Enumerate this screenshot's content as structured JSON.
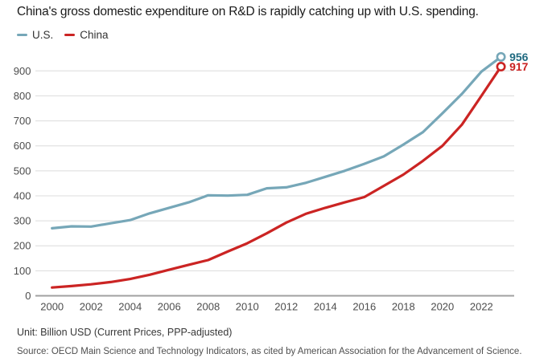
{
  "title": "China's gross domestic expenditure on R&D is rapidly catching up with U.S. spending.",
  "legend": [
    {
      "label": "U.S.",
      "color": "#76a7b8"
    },
    {
      "label": "China",
      "color": "#cb2423"
    }
  ],
  "footer": {
    "unit": "Unit: Billion USD (Current Prices, PPP-adjusted)",
    "source": "Source: OECD Main Science and Technology Indicators, as cited by American Association for the Advancement of Science."
  },
  "chart_data": {
    "type": "line",
    "title": "China's gross domestic expenditure on R&D is rapidly catching up with U.S. spending.",
    "x": [
      2000,
      2001,
      2002,
      2003,
      2004,
      2005,
      2006,
      2007,
      2008,
      2009,
      2010,
      2011,
      2012,
      2013,
      2014,
      2015,
      2016,
      2017,
      2018,
      2019,
      2020,
      2021,
      2022,
      2023
    ],
    "series": [
      {
        "name": "U.S.",
        "color": "#76a7b8",
        "label_color": "#1f6a80",
        "values": [
          270,
          278,
          277,
          290,
          303,
          330,
          352,
          374,
          402,
          401,
          404,
          430,
          434,
          452,
          476,
          500,
          528,
          558,
          605,
          655,
          730,
          808,
          897,
          956
        ],
        "end_label": "956"
      },
      {
        "name": "China",
        "color": "#cb2423",
        "label_color": "#c92121",
        "values": [
          33,
          39,
          46,
          55,
          67,
          84,
          104,
          124,
          143,
          177,
          210,
          250,
          293,
          328,
          352,
          374,
          395,
          440,
          485,
          540,
          600,
          685,
          800,
          917
        ],
        "end_label": "917"
      }
    ],
    "xticks": [
      2000,
      2002,
      2004,
      2006,
      2008,
      2010,
      2012,
      2014,
      2016,
      2018,
      2020,
      2022
    ],
    "yticks": [
      0,
      100,
      200,
      300,
      400,
      500,
      600,
      700,
      800,
      900
    ],
    "ylim": [
      0,
      1000
    ],
    "xlabel": "",
    "ylabel": "",
    "grid": "horizontal",
    "legend_position": "top-left",
    "unit": "Billion USD (Current Prices, PPP-adjusted)",
    "source": "OECD Main Science and Technology Indicators, as cited by American Association for the Advancement of Science."
  },
  "colors": {
    "background": "#ffffff",
    "grid": "#dcdcdc",
    "axis": "#a0a0a0",
    "tick_label": "#4d4d4d",
    "title": "#1a1a1a"
  }
}
